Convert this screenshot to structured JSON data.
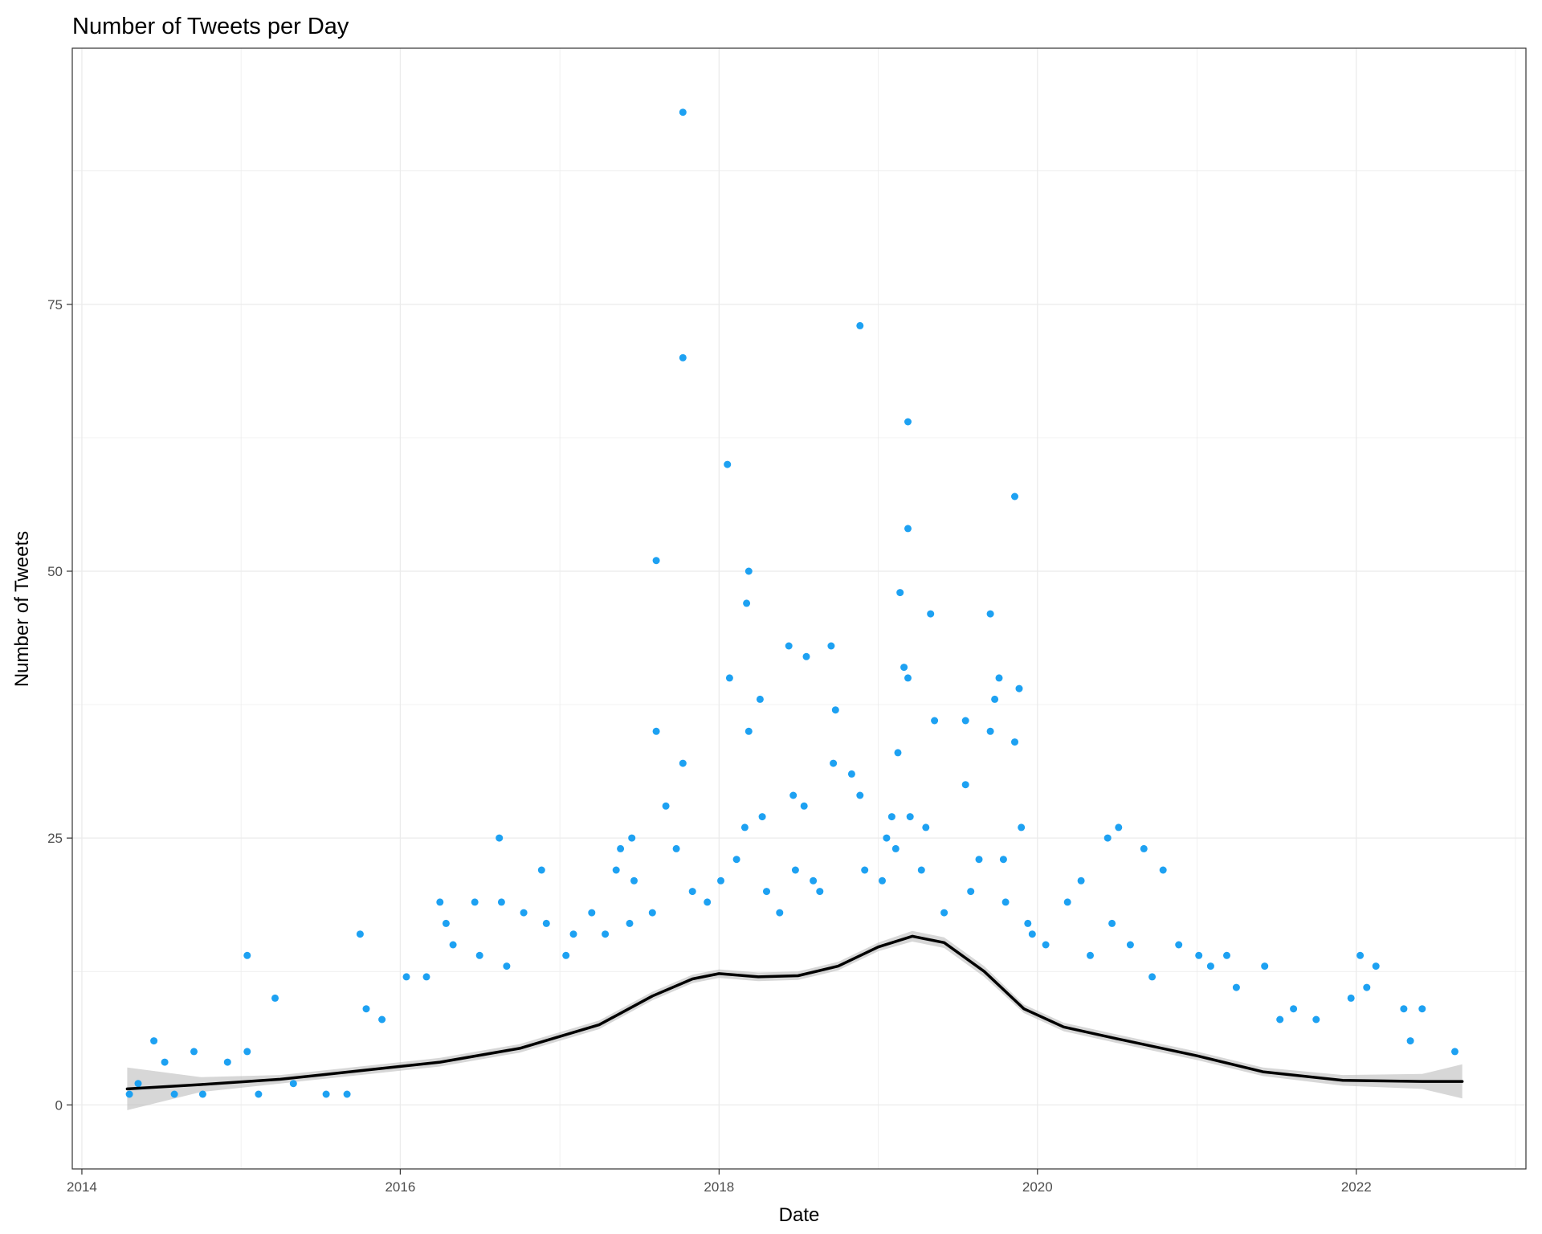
{
  "chart_data": {
    "type": "scatter",
    "title": "Number of Tweets per Day",
    "xlabel": "Date",
    "ylabel": "Number of Tweets",
    "x_ticks": [
      "2014",
      "2016",
      "2018",
      "2020",
      "2022"
    ],
    "y_ticks": [
      "0",
      "25",
      "50",
      "75"
    ],
    "xlim": [
      "2013-12-10",
      "2023-01-25"
    ],
    "ylim": [
      -6,
      99
    ],
    "grid": true,
    "legend": "none",
    "colors": {
      "points": "#1da1f2",
      "smooth": "#000000",
      "ribbon": "#bdbdbd"
    },
    "series": [
      {
        "kind": "points",
        "points": [
          [
            "2017-10-10",
            93
          ],
          [
            "2018-11-20",
            73
          ],
          [
            "2017-10-10",
            70
          ],
          [
            "2019-03-10",
            64
          ],
          [
            "2018-01-20",
            60
          ],
          [
            "2019-11-10",
            57
          ],
          [
            "2019-03-10",
            54
          ],
          [
            "2017-08-10",
            51
          ],
          [
            "2018-03-10",
            50
          ],
          [
            "2019-02-20",
            48
          ],
          [
            "2018-03-05",
            47
          ],
          [
            "2019-05-01",
            46
          ],
          [
            "2019-09-15",
            46
          ],
          [
            "2018-06-10",
            43
          ],
          [
            "2018-09-15",
            43
          ],
          [
            "2018-07-20",
            42
          ],
          [
            "2019-03-01",
            41
          ],
          [
            "2019-03-10",
            40
          ],
          [
            "2019-10-05",
            40
          ],
          [
            "2018-01-25",
            40
          ],
          [
            "2019-11-20",
            39
          ],
          [
            "2019-09-25",
            38
          ],
          [
            "2018-04-05",
            38
          ],
          [
            "2018-09-25",
            37
          ],
          [
            "2019-05-10",
            36
          ],
          [
            "2019-07-20",
            36
          ],
          [
            "2017-08-10",
            35
          ],
          [
            "2018-03-10",
            35
          ],
          [
            "2019-09-15",
            35
          ],
          [
            "2019-11-10",
            34
          ],
          [
            "2019-02-15",
            33
          ],
          [
            "2017-10-10",
            32
          ],
          [
            "2018-09-20",
            32
          ],
          [
            "2018-11-01",
            31
          ],
          [
            "2019-07-20",
            30
          ],
          [
            "2018-06-20",
            29
          ],
          [
            "2018-11-20",
            29
          ],
          [
            "2017-09-01",
            28
          ],
          [
            "2018-07-15",
            28
          ],
          [
            "2019-02-01",
            27
          ],
          [
            "2018-04-10",
            27
          ],
          [
            "2019-03-15",
            27
          ],
          [
            "2018-03-01",
            26
          ],
          [
            "2019-04-20",
            26
          ],
          [
            "2020-07-05",
            26
          ],
          [
            "2019-11-25",
            26
          ],
          [
            "2016-08-15",
            25
          ],
          [
            "2017-06-15",
            25
          ],
          [
            "2020-06-10",
            25
          ],
          [
            "2019-01-20",
            25
          ],
          [
            "2020-09-01",
            24
          ],
          [
            "2017-05-20",
            24
          ],
          [
            "2017-09-25",
            24
          ],
          [
            "2019-08-20",
            23
          ],
          [
            "2018-02-10",
            23
          ],
          [
            "2019-10-15",
            23
          ],
          [
            "2017-05-10",
            22
          ],
          [
            "2016-11-20",
            22
          ],
          [
            "2020-10-15",
            22
          ],
          [
            "2018-06-25",
            22
          ],
          [
            "2017-06-20",
            21
          ],
          [
            "2020-04-10",
            21
          ],
          [
            "2019-01-10",
            21
          ],
          [
            "2018-08-05",
            21
          ],
          [
            "2016-04-01",
            19
          ],
          [
            "2016-06-20",
            19
          ],
          [
            "2016-08-20",
            19
          ],
          [
            "2017-12-05",
            19
          ],
          [
            "2019-10-20",
            19
          ],
          [
            "2015-10-01",
            16
          ],
          [
            "2016-04-15",
            17
          ],
          [
            "2016-10-10",
            18
          ],
          [
            "2017-03-15",
            18
          ],
          [
            "2017-06-10",
            17
          ],
          [
            "2018-05-20",
            18
          ],
          [
            "2019-06-01",
            18
          ],
          [
            "2019-12-10",
            17
          ],
          [
            "2020-03-10",
            19
          ],
          [
            "2020-06-20",
            17
          ],
          [
            "2015-01-15",
            14
          ],
          [
            "2022-01-10",
            14
          ],
          [
            "2021-03-10",
            14
          ],
          [
            "2021-06-05",
            13
          ],
          [
            "2021-02-01",
            13
          ],
          [
            "2022-02-15",
            13
          ],
          [
            "2021-01-05",
            14
          ],
          [
            "2020-11-20",
            15
          ],
          [
            "2015-03-20",
            10
          ],
          [
            "2021-12-20",
            10
          ],
          [
            "2022-01-25",
            11
          ],
          [
            "2022-06-01",
            9
          ],
          [
            "2022-04-20",
            9
          ],
          [
            "2021-08-10",
            9
          ],
          [
            "2022-05-05",
            6
          ],
          [
            "2022-08-15",
            5
          ],
          [
            "2014-06-15",
            6
          ],
          [
            "2014-09-15",
            5
          ],
          [
            "2015-01-15",
            5
          ],
          [
            "2014-12-01",
            4
          ],
          [
            "2014-07-10",
            4
          ],
          [
            "2015-11-20",
            8
          ],
          [
            "2016-01-15",
            12
          ],
          [
            "2015-10-15",
            9
          ],
          [
            "2016-05-01",
            15
          ],
          [
            "2016-07-01",
            14
          ],
          [
            "2016-03-01",
            12
          ],
          [
            "2016-09-01",
            13
          ],
          [
            "2016-12-01",
            17
          ],
          [
            "2017-02-01",
            16
          ],
          [
            "2017-04-15",
            16
          ],
          [
            "2017-01-15",
            14
          ],
          [
            "2017-08-01",
            18
          ],
          [
            "2017-11-01",
            20
          ],
          [
            "2018-01-05",
            21
          ],
          [
            "2018-04-20",
            20
          ],
          [
            "2018-08-20",
            20
          ],
          [
            "2018-12-01",
            22
          ],
          [
            "2019-02-10",
            24
          ],
          [
            "2019-04-10",
            22
          ],
          [
            "2019-08-01",
            20
          ],
          [
            "2019-12-20",
            16
          ],
          [
            "2020-01-20",
            15
          ],
          [
            "2020-05-01",
            14
          ],
          [
            "2020-08-01",
            15
          ],
          [
            "2020-09-20",
            12
          ],
          [
            "2021-04-01",
            11
          ],
          [
            "2021-07-10",
            8
          ],
          [
            "2021-10-01",
            8
          ],
          [
            "2014-04-20",
            1
          ],
          [
            "2014-05-10",
            2
          ],
          [
            "2014-08-01",
            1
          ],
          [
            "2014-10-05",
            1
          ],
          [
            "2015-02-10",
            1
          ],
          [
            "2015-05-01",
            2
          ],
          [
            "2015-07-15",
            1
          ],
          [
            "2015-09-01",
            1
          ]
        ]
      },
      {
        "kind": "smooth",
        "x": [
          "2014-04-15",
          "2014-10-01",
          "2015-04-01",
          "2015-10-01",
          "2016-04-01",
          "2016-10-01",
          "2017-04-01",
          "2017-08-01",
          "2017-11-01",
          "2018-01-01",
          "2018-04-01",
          "2018-07-01",
          "2018-10-01",
          "2019-01-01",
          "2019-03-20",
          "2019-06-01",
          "2019-09-01",
          "2019-12-01",
          "2020-03-01",
          "2020-07-01",
          "2021-01-01",
          "2021-06-01",
          "2021-12-01",
          "2022-06-01",
          "2022-09-01"
        ],
        "y": [
          1.5,
          1.9,
          2.4,
          3.2,
          4.0,
          5.3,
          7.5,
          10.2,
          11.8,
          12.3,
          12.0,
          12.1,
          13.0,
          14.8,
          15.8,
          15.2,
          12.5,
          9.0,
          7.3,
          6.2,
          4.6,
          3.1,
          2.3,
          2.2,
          2.2
        ],
        "band_lower": [
          -0.5,
          1.2,
          2.0,
          2.8,
          3.6,
          4.9,
          7.1,
          9.8,
          11.4,
          11.9,
          11.6,
          11.7,
          12.6,
          14.4,
          15.3,
          14.7,
          12.0,
          8.6,
          6.9,
          5.8,
          4.2,
          2.7,
          1.8,
          1.5,
          0.6
        ],
        "band_upper": [
          3.5,
          2.6,
          2.8,
          3.6,
          4.4,
          5.7,
          7.9,
          10.6,
          12.2,
          12.7,
          12.4,
          12.5,
          13.4,
          15.2,
          16.3,
          15.7,
          13.0,
          9.4,
          7.7,
          6.6,
          5.0,
          3.5,
          2.8,
          2.9,
          3.8
        ]
      }
    ]
  }
}
